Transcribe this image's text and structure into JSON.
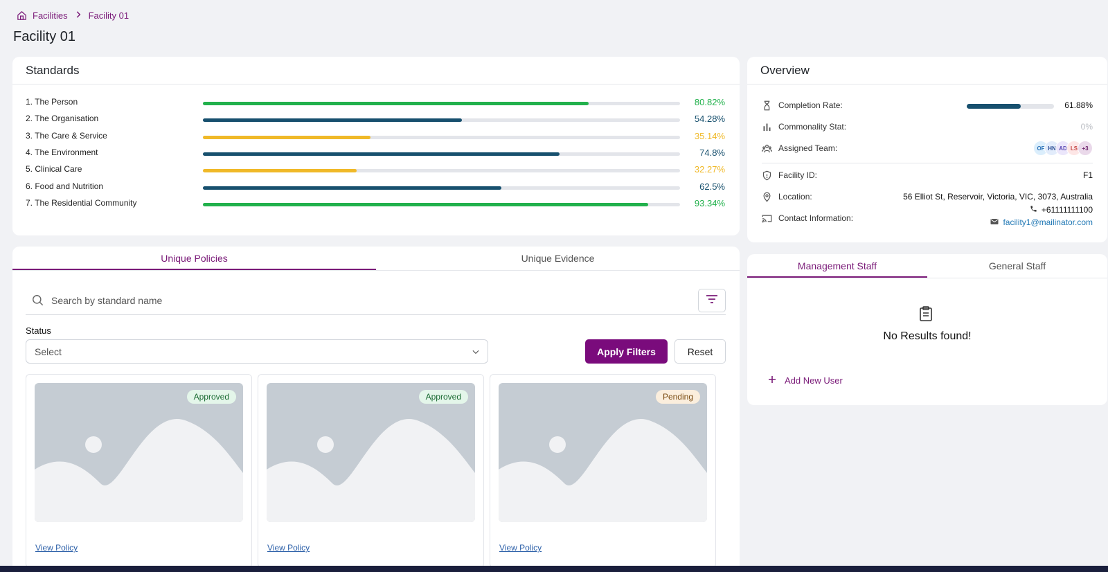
{
  "breadcrumb": {
    "home": "Facilities",
    "current": "Facility 01"
  },
  "page_title": "Facility 01",
  "standards": {
    "title": "Standards",
    "items": [
      {
        "label": "1. The Person",
        "value": "80.82%",
        "fraction": 0.8082,
        "color": "#22b14c"
      },
      {
        "label": "2. The Organisation",
        "value": "54.28%",
        "fraction": 0.5428,
        "color": "#17506e"
      },
      {
        "label": "3. The Care & Service",
        "value": "35.14%",
        "fraction": 0.3514,
        "color": "#f0b928"
      },
      {
        "label": "4. The Environment",
        "value": "74.8%",
        "fraction": 0.748,
        "color": "#17506e"
      },
      {
        "label": "5. Clinical Care",
        "value": "32.27%",
        "fraction": 0.3227,
        "color": "#f0b928"
      },
      {
        "label": "6. Food and Nutrition",
        "value": "62.5%",
        "fraction": 0.625,
        "color": "#17506e"
      },
      {
        "label": "7. The Residential Community",
        "value": "93.34%",
        "fraction": 0.9334,
        "color": "#22b14c"
      }
    ]
  },
  "overview": {
    "title": "Overview",
    "completion_label": "Completion Rate:",
    "completion_value": "61.88%",
    "completion_fraction": 0.6188,
    "commonality_label": "Commonality Stat:",
    "commonality_value": "0%",
    "team_label": "Assigned Team:",
    "team": [
      {
        "initials": "OF",
        "bg": "#dbeefc",
        "fg": "#2b72b8"
      },
      {
        "initials": "HN",
        "bg": "#e2ecfb",
        "fg": "#2d4f96"
      },
      {
        "initials": "AD",
        "bg": "#ebe6fb",
        "fg": "#5a46b2"
      },
      {
        "initials": "LS",
        "bg": "#fde6e6",
        "fg": "#c34141"
      },
      {
        "initials": "+3",
        "bg": "#ead9ea",
        "fg": "#6a1d68"
      }
    ],
    "facility_id_label": "Facility ID:",
    "facility_id": "F1",
    "location_label": "Location:",
    "location": "56 Elliot St, Reservoir, Victoria, VIC, 3073, Australia",
    "contact_label": "Contact Information:",
    "phone": "+61111111100",
    "email": "facility1@mailinator.com"
  },
  "policies": {
    "tabs": [
      "Unique Policies",
      "Unique Evidence"
    ],
    "search_placeholder": "Search by standard name",
    "status_label": "Status",
    "status_value": "Select",
    "apply_label": "Apply Filters",
    "reset_label": "Reset",
    "cards": [
      {
        "status": "Approved",
        "link": "View Policy"
      },
      {
        "status": "Approved",
        "link": "View Policy"
      },
      {
        "status": "Pending",
        "link": "View Policy"
      }
    ]
  },
  "staff": {
    "tabs": [
      "Management Staff",
      "General Staff"
    ],
    "empty_text": "No Results found!",
    "add_label": "Add New User"
  }
}
